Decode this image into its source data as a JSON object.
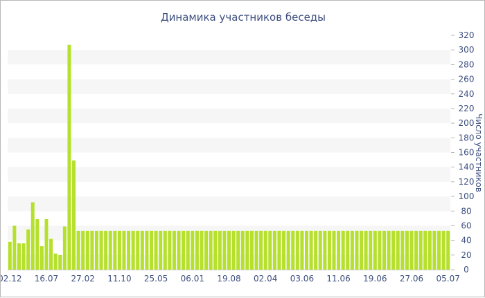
{
  "chart_data": {
    "type": "bar",
    "title": "Динамика участников беседы",
    "xlabel": "",
    "ylabel": "Число участников",
    "ylim": [
      0,
      320
    ],
    "y_ticks": [
      0,
      20,
      40,
      60,
      80,
      100,
      120,
      140,
      160,
      180,
      200,
      220,
      240,
      260,
      280,
      300,
      320
    ],
    "y_axis_side": "right",
    "grid": "horizontal bands",
    "legend": "none",
    "bar_color": "#b5e02b",
    "band_color": "#f6f6f6",
    "text_color": "#3d4f7f",
    "x_tick_labels": [
      "02.12",
      "16.07",
      "27.02",
      "11.10",
      "25.05",
      "06.01",
      "19.08",
      "02.04",
      "03.06",
      "11.06",
      "19.06",
      "27.06",
      "05.07"
    ],
    "x_tick_bar_index": [
      0,
      8,
      16,
      24,
      32,
      40,
      48,
      56,
      64,
      72,
      80,
      88,
      96
    ],
    "values": [
      38,
      60,
      36,
      36,
      55,
      92,
      69,
      32,
      69,
      42,
      22,
      20,
      59,
      307,
      149,
      53,
      53,
      53,
      53,
      53,
      53,
      53,
      53,
      53,
      53,
      53,
      53,
      53,
      53,
      53,
      53,
      53,
      53,
      53,
      53,
      53,
      53,
      53,
      53,
      53,
      53,
      53,
      53,
      53,
      53,
      53,
      53,
      53,
      53,
      53,
      53,
      53,
      53,
      53,
      53,
      53,
      53,
      53,
      53,
      53,
      53,
      53,
      53,
      53,
      53,
      53,
      53,
      53,
      53,
      53,
      53,
      53,
      53,
      53,
      53,
      53,
      53,
      53,
      53,
      53,
      53,
      53,
      53,
      53,
      53,
      53,
      53,
      53,
      53,
      53,
      53,
      53,
      53,
      53,
      53,
      53,
      53
    ]
  }
}
